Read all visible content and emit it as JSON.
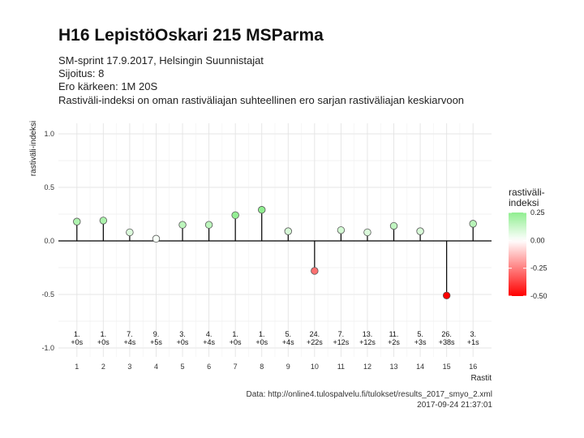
{
  "header": {
    "title": "H16 LepistöOskari 215 MSParma",
    "subtitle_lines": [
      "SM-sprint 17.9.2017, Helsingin Suunnistajat",
      "Sijoitus: 8",
      "Ero kärkeen: 1M 20S",
      "Rastiväli-indeksi on oman rastiväliajan suhteellinen ero sarjan rastiväliajan keskiarvoon"
    ]
  },
  "caption": {
    "source": "Data: http://online4.tulospalvelu.fi/tulokset/results_2017_smyo_2.xml",
    "timestamp": "2017-09-24 21:37:01"
  },
  "legend": {
    "title_lines": [
      "rastiväli-",
      "indeksi"
    ],
    "ticks": [
      0.25,
      0.0,
      -0.25,
      -0.5
    ],
    "tick_labels": [
      "0.25",
      "0.00",
      "-0.25",
      "-0.50"
    ],
    "min": -0.5,
    "max": 0.25,
    "colors": {
      "low": "#ff0000",
      "mid": "#ffffff",
      "high": "#90ee90"
    }
  },
  "chart_data": {
    "type": "scatter",
    "xlabel": "Rastit",
    "ylabel": "rastiväli-indeksi",
    "ylim": [
      -1.0,
      1.0
    ],
    "yticks": [
      1.0,
      0.5,
      0.0,
      -0.5,
      -1.0
    ],
    "ytick_labels": [
      "1.0",
      "0.5",
      "0.0",
      "-0.5",
      "-1.0"
    ],
    "x": [
      1,
      2,
      3,
      4,
      5,
      6,
      7,
      8,
      9,
      10,
      11,
      12,
      13,
      14,
      15,
      16
    ],
    "values": [
      0.18,
      0.19,
      0.08,
      0.02,
      0.15,
      0.15,
      0.24,
      0.29,
      0.09,
      -0.28,
      0.1,
      0.08,
      0.14,
      0.09,
      -0.51,
      0.16
    ],
    "rank_labels": [
      "1.",
      "1.",
      "7.",
      "9.",
      "3.",
      "4.",
      "1.",
      "1.",
      "5.",
      "24.",
      "7.",
      "13.",
      "11.",
      "5.",
      "26.",
      "3."
    ],
    "gap_labels": [
      "+0s",
      "+0s",
      "+4s",
      "+5s",
      "+0s",
      "+4s",
      "+0s",
      "+0s",
      "+4s",
      "+22s",
      "+12s",
      "+12s",
      "+2s",
      "+3s",
      "+38s",
      "+1s"
    ],
    "grid": true,
    "legend_position": "right"
  }
}
